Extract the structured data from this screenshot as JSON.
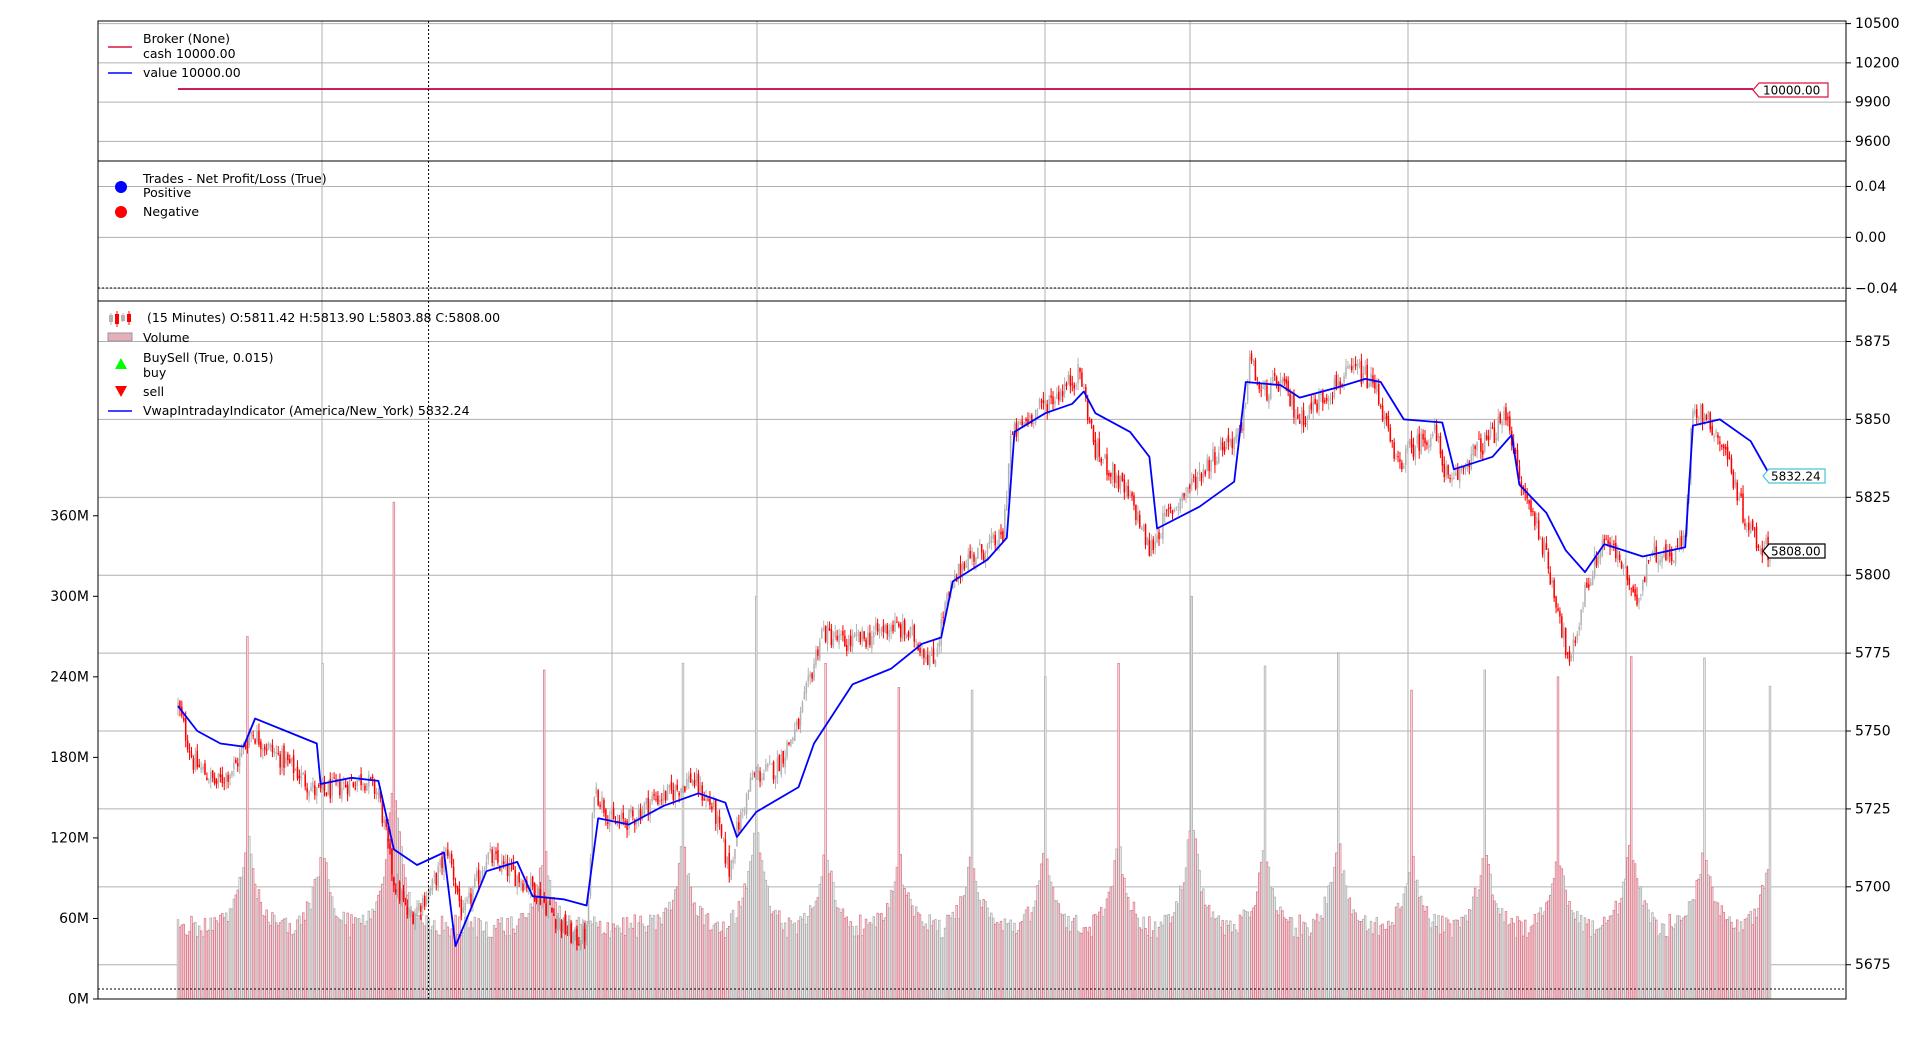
{
  "colors": {
    "broker_line": "#dc143c",
    "value_line": "#0000ff",
    "trade_positive": "#0000ff",
    "trade_negative": "#ff0000",
    "buy_marker": "#00ff00",
    "sell_marker": "#ff0000",
    "candle_up": "#b3b3b3",
    "candle_down": "#ff0000",
    "volume_up": "#b3b3b3",
    "volume_down": "#e08090",
    "vwap_line": "#0000ff",
    "vwap_tag_border": "#46c7d6",
    "grid": "#b0b0b0"
  },
  "chart_data": [
    {
      "type": "line",
      "panel": "broker",
      "legend": [
        {
          "label": "Broker (None)",
          "icon": "none"
        },
        {
          "label": "cash 10000.00",
          "icon": "line-crimson"
        },
        {
          "label": "value 10000.00",
          "icon": "line-blue"
        }
      ],
      "ylim": [
        9450,
        10520
      ],
      "yticks": [
        9600,
        9900,
        10200,
        10500
      ],
      "ytick_labels": [
        "9600",
        "9900",
        "10200",
        "10500"
      ],
      "series": [
        {
          "name": "cash",
          "values": [
            10000,
            10000
          ]
        },
        {
          "name": "value",
          "values": [
            10000,
            10000
          ]
        }
      ],
      "last_value_tag": "10000.00",
      "grid": true
    },
    {
      "type": "scatter",
      "panel": "trades",
      "legend": [
        {
          "label": "Trades - Net Profit/Loss (True)",
          "icon": "none"
        },
        {
          "label": "Positive",
          "icon": "dot-blue"
        },
        {
          "label": "Negative",
          "icon": "dot-red"
        }
      ],
      "ylim": [
        -0.05,
        0.06
      ],
      "yticks": [
        -0.04,
        0.0,
        0.04
      ],
      "ytick_labels": [
        "−0.04",
        "0.00",
        "0.04"
      ],
      "series": [],
      "grid": true
    },
    {
      "type": "candlestick",
      "panel": "price",
      "legend": [
        {
          "label": "(15 Minutes) O:5811.42 H:5813.90 L:5803.88 C:5808.00",
          "icon": "candles"
        },
        {
          "label": "Volume",
          "icon": "volume"
        },
        {
          "label": "BuySell (True, 0.015)",
          "icon": "none"
        },
        {
          "label": "buy",
          "icon": "tri-up-green"
        },
        {
          "label": "sell",
          "icon": "tri-down-red"
        },
        {
          "label": "VwapIntradayIndicator (America/New_York) 5832.24",
          "icon": "line-blue"
        }
      ],
      "ylim": [
        5664,
        5888
      ],
      "yticks": [
        5675,
        5700,
        5725,
        5750,
        5775,
        5800,
        5825,
        5850,
        5875
      ],
      "ytick_labels": [
        "5675",
        "5700",
        "5725",
        "5750",
        "5775",
        "5800",
        "5825",
        "5850",
        "5875"
      ],
      "volume_ylim": [
        0,
        520
      ],
      "volume_yticks": [
        0,
        60,
        120,
        180,
        240,
        300,
        360
      ],
      "volume_ytick_labels": [
        "0M",
        "60M",
        "120M",
        "180M",
        "240M",
        "300M",
        "360M"
      ],
      "close_path": [
        {
          "i": 0,
          "c": 5758
        },
        {
          "i": 8,
          "c": 5740
        },
        {
          "i": 20,
          "c": 5733
        },
        {
          "i": 30,
          "c": 5739
        },
        {
          "i": 38,
          "c": 5750
        },
        {
          "i": 48,
          "c": 5744
        },
        {
          "i": 60,
          "c": 5738
        },
        {
          "i": 72,
          "c": 5730
        },
        {
          "i": 84,
          "c": 5732
        },
        {
          "i": 96,
          "c": 5735
        },
        {
          "i": 104,
          "c": 5730
        },
        {
          "i": 112,
          "c": 5702
        },
        {
          "i": 120,
          "c": 5690
        },
        {
          "i": 132,
          "c": 5700
        },
        {
          "i": 140,
          "c": 5712
        },
        {
          "i": 148,
          "c": 5690
        },
        {
          "i": 160,
          "c": 5710
        },
        {
          "i": 172,
          "c": 5705
        },
        {
          "i": 184,
          "c": 5700
        },
        {
          "i": 196,
          "c": 5690
        },
        {
          "i": 206,
          "c": 5683
        },
        {
          "i": 212,
          "c": 5685
        },
        {
          "i": 216,
          "c": 5732
        },
        {
          "i": 226,
          "c": 5720
        },
        {
          "i": 236,
          "c": 5722
        },
        {
          "i": 246,
          "c": 5728
        },
        {
          "i": 256,
          "c": 5730
        },
        {
          "i": 266,
          "c": 5735
        },
        {
          "i": 278,
          "c": 5725
        },
        {
          "i": 286,
          "c": 5705
        },
        {
          "i": 290,
          "c": 5718
        },
        {
          "i": 298,
          "c": 5735
        },
        {
          "i": 310,
          "c": 5738
        },
        {
          "i": 322,
          "c": 5752
        },
        {
          "i": 334,
          "c": 5782
        },
        {
          "i": 346,
          "c": 5778
        },
        {
          "i": 358,
          "c": 5780
        },
        {
          "i": 370,
          "c": 5784
        },
        {
          "i": 382,
          "c": 5780
        },
        {
          "i": 392,
          "c": 5772
        },
        {
          "i": 398,
          "c": 5790
        },
        {
          "i": 408,
          "c": 5805
        },
        {
          "i": 418,
          "c": 5808
        },
        {
          "i": 428,
          "c": 5812
        },
        {
          "i": 432,
          "c": 5844
        },
        {
          "i": 442,
          "c": 5851
        },
        {
          "i": 454,
          "c": 5857
        },
        {
          "i": 468,
          "c": 5865
        },
        {
          "i": 476,
          "c": 5840
        },
        {
          "i": 486,
          "c": 5832
        },
        {
          "i": 496,
          "c": 5822
        },
        {
          "i": 504,
          "c": 5808
        },
        {
          "i": 512,
          "c": 5818
        },
        {
          "i": 522,
          "c": 5826
        },
        {
          "i": 532,
          "c": 5834
        },
        {
          "i": 542,
          "c": 5842
        },
        {
          "i": 552,
          "c": 5845
        },
        {
          "i": 556,
          "c": 5870
        },
        {
          "i": 562,
          "c": 5858
        },
        {
          "i": 572,
          "c": 5862
        },
        {
          "i": 582,
          "c": 5850
        },
        {
          "i": 592,
          "c": 5856
        },
        {
          "i": 602,
          "c": 5862
        },
        {
          "i": 612,
          "c": 5866
        },
        {
          "i": 622,
          "c": 5860
        },
        {
          "i": 632,
          "c": 5835
        },
        {
          "i": 642,
          "c": 5842
        },
        {
          "i": 652,
          "c": 5846
        },
        {
          "i": 660,
          "c": 5828
        },
        {
          "i": 670,
          "c": 5838
        },
        {
          "i": 682,
          "c": 5845
        },
        {
          "i": 690,
          "c": 5852
        },
        {
          "i": 696,
          "c": 5830
        },
        {
          "i": 706,
          "c": 5815
        },
        {
          "i": 716,
          "c": 5790
        },
        {
          "i": 722,
          "c": 5770
        },
        {
          "i": 730,
          "c": 5795
        },
        {
          "i": 740,
          "c": 5812
        },
        {
          "i": 750,
          "c": 5803
        },
        {
          "i": 756,
          "c": 5790
        },
        {
          "i": 764,
          "c": 5808
        },
        {
          "i": 774,
          "c": 5806
        },
        {
          "i": 782,
          "c": 5812
        },
        {
          "i": 786,
          "c": 5855
        },
        {
          "i": 796,
          "c": 5848
        },
        {
          "i": 804,
          "c": 5838
        },
        {
          "i": 812,
          "c": 5820
        },
        {
          "i": 820,
          "c": 5810
        },
        {
          "i": 826,
          "c": 5808
        }
      ],
      "vwap_path": [
        {
          "i": 0,
          "c": 5758
        },
        {
          "i": 10,
          "c": 5750
        },
        {
          "i": 22,
          "c": 5746
        },
        {
          "i": 34,
          "c": 5745
        },
        {
          "i": 40,
          "c": 5754
        },
        {
          "i": 56,
          "c": 5750
        },
        {
          "i": 72,
          "c": 5746
        },
        {
          "i": 74,
          "c": 5733
        },
        {
          "i": 90,
          "c": 5735
        },
        {
          "i": 104,
          "c": 5734
        },
        {
          "i": 112,
          "c": 5712
        },
        {
          "i": 124,
          "c": 5707
        },
        {
          "i": 138,
          "c": 5711
        },
        {
          "i": 144,
          "c": 5681
        },
        {
          "i": 160,
          "c": 5705
        },
        {
          "i": 176,
          "c": 5708
        },
        {
          "i": 184,
          "c": 5697
        },
        {
          "i": 200,
          "c": 5696
        },
        {
          "i": 212,
          "c": 5694
        },
        {
          "i": 218,
          "c": 5722
        },
        {
          "i": 234,
          "c": 5720
        },
        {
          "i": 252,
          "c": 5726
        },
        {
          "i": 270,
          "c": 5730
        },
        {
          "i": 284,
          "c": 5727
        },
        {
          "i": 290,
          "c": 5716
        },
        {
          "i": 300,
          "c": 5724
        },
        {
          "i": 322,
          "c": 5732
        },
        {
          "i": 330,
          "c": 5746
        },
        {
          "i": 350,
          "c": 5765
        },
        {
          "i": 370,
          "c": 5770
        },
        {
          "i": 386,
          "c": 5778
        },
        {
          "i": 396,
          "c": 5780
        },
        {
          "i": 402,
          "c": 5798
        },
        {
          "i": 420,
          "c": 5805
        },
        {
          "i": 430,
          "c": 5812
        },
        {
          "i": 434,
          "c": 5846
        },
        {
          "i": 450,
          "c": 5852
        },
        {
          "i": 464,
          "c": 5855
        },
        {
          "i": 470,
          "c": 5859
        },
        {
          "i": 476,
          "c": 5852
        },
        {
          "i": 494,
          "c": 5846
        },
        {
          "i": 504,
          "c": 5838
        },
        {
          "i": 508,
          "c": 5815
        },
        {
          "i": 530,
          "c": 5822
        },
        {
          "i": 548,
          "c": 5830
        },
        {
          "i": 554,
          "c": 5862
        },
        {
          "i": 572,
          "c": 5861
        },
        {
          "i": 582,
          "c": 5857
        },
        {
          "i": 600,
          "c": 5860
        },
        {
          "i": 616,
          "c": 5863
        },
        {
          "i": 624,
          "c": 5862
        },
        {
          "i": 636,
          "c": 5850
        },
        {
          "i": 656,
          "c": 5849
        },
        {
          "i": 662,
          "c": 5834
        },
        {
          "i": 682,
          "c": 5838
        },
        {
          "i": 692,
          "c": 5845
        },
        {
          "i": 696,
          "c": 5829
        },
        {
          "i": 710,
          "c": 5820
        },
        {
          "i": 720,
          "c": 5808
        },
        {
          "i": 730,
          "c": 5801
        },
        {
          "i": 740,
          "c": 5810
        },
        {
          "i": 760,
          "c": 5806
        },
        {
          "i": 782,
          "c": 5809
        },
        {
          "i": 786,
          "c": 5848
        },
        {
          "i": 800,
          "c": 5850
        },
        {
          "i": 816,
          "c": 5843
        },
        {
          "i": 826,
          "c": 5832
        }
      ],
      "volume_spikes": [
        {
          "i": 36,
          "v": 270
        },
        {
          "i": 75,
          "v": 250
        },
        {
          "i": 112,
          "v": 370
        },
        {
          "i": 190,
          "v": 245
        },
        {
          "i": 262,
          "v": 250
        },
        {
          "i": 300,
          "v": 300
        },
        {
          "i": 336,
          "v": 250
        },
        {
          "i": 374,
          "v": 232
        },
        {
          "i": 412,
          "v": 230
        },
        {
          "i": 450,
          "v": 240
        },
        {
          "i": 488,
          "v": 250
        },
        {
          "i": 526,
          "v": 300
        },
        {
          "i": 564,
          "v": 248
        },
        {
          "i": 602,
          "v": 258
        },
        {
          "i": 640,
          "v": 230
        },
        {
          "i": 678,
          "v": 245
        },
        {
          "i": 716,
          "v": 240
        },
        {
          "i": 754,
          "v": 255
        },
        {
          "i": 792,
          "v": 254
        },
        {
          "i": 826,
          "v": 233
        }
      ],
      "bar_count": 827,
      "vline_bar": 130,
      "last_close_tag": "5808.00",
      "last_vwap_tag": "5832.24",
      "grid": true
    }
  ]
}
